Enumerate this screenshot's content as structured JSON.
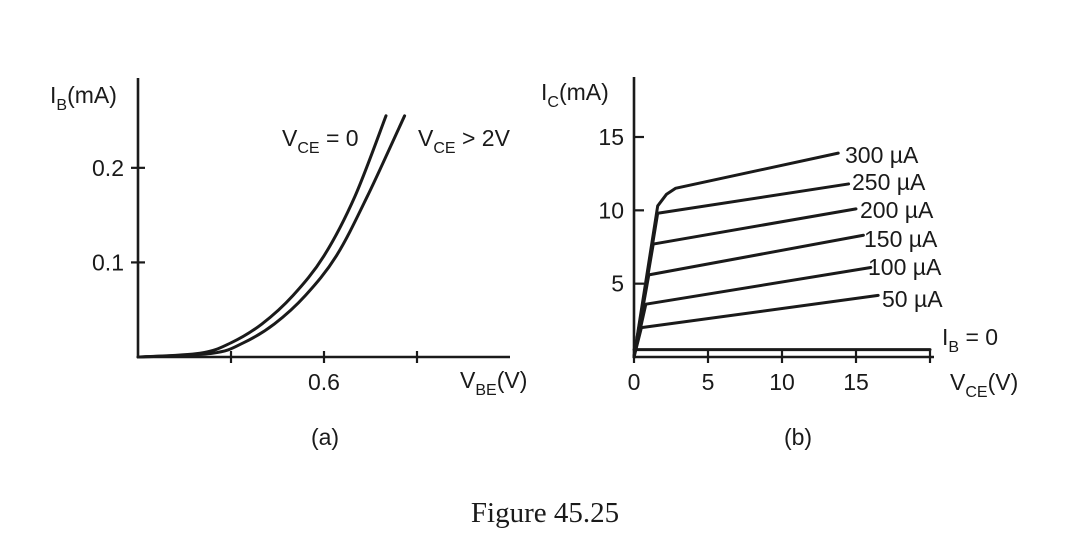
{
  "figure_caption": "Figure 45.25",
  "chart_data": [
    {
      "panel_label": "(a)",
      "type": "line",
      "ylabel": {
        "main": "I",
        "sub": "B",
        "rest": "(mA)"
      },
      "xlabel": {
        "main": "V",
        "sub": "BE",
        "rest": "(V)"
      },
      "xlim": [
        0.3,
        0.9
      ],
      "ylim": [
        0,
        0.24
      ],
      "x_ticks": [
        0.45,
        0.6,
        0.75
      ],
      "x_tick_labels": [
        {
          "value": 0.6,
          "text": "0.6"
        }
      ],
      "y_ticks": [
        {
          "value": 0.1,
          "text": "0.1"
        },
        {
          "value": 0.2,
          "text": "0.2"
        }
      ],
      "series": [
        {
          "label": {
            "main": "V",
            "sub": "CE",
            "rest": " = 0"
          },
          "x": [
            0.3,
            0.4,
            0.45,
            0.5,
            0.55,
            0.6,
            0.65,
            0.7
          ],
          "y": [
            0.0,
            0.004,
            0.015,
            0.035,
            0.065,
            0.107,
            0.17,
            0.255
          ]
        },
        {
          "label": {
            "main": "V",
            "sub": "CE",
            "rest": " > 2V"
          },
          "x": [
            0.3,
            0.42,
            0.47,
            0.52,
            0.57,
            0.62,
            0.67,
            0.73
          ],
          "y": [
            0.0,
            0.004,
            0.015,
            0.035,
            0.065,
            0.107,
            0.17,
            0.255
          ]
        }
      ]
    },
    {
      "panel_label": "(b)",
      "type": "line",
      "ylabel": {
        "main": "I",
        "sub": "C",
        "rest": "(mA)"
      },
      "xlabel": {
        "main": "V",
        "sub": "CE",
        "rest": "(V)"
      },
      "xlim": [
        0,
        20
      ],
      "ylim": [
        0,
        17
      ],
      "x_ticks": [
        {
          "value": 0,
          "text": "0"
        },
        {
          "value": 5,
          "text": "5"
        },
        {
          "value": 10,
          "text": "10"
        },
        {
          "value": 15,
          "text": "15"
        }
      ],
      "extra_x_ticks": [
        20
      ],
      "y_ticks": [
        {
          "value": 5,
          "text": "5"
        },
        {
          "value": 10,
          "text": "10"
        },
        {
          "value": 15,
          "text": "15"
        }
      ],
      "series": [
        {
          "label": "I_B = 0",
          "label_parts": {
            "main": "I",
            "sub": "B",
            "rest": " = 0"
          },
          "x": [
            0,
            20
          ],
          "y": [
            0.5,
            0.5
          ]
        },
        {
          "label": "50 µA",
          "x": [
            0,
            0.5,
            16.5
          ],
          "y": [
            0,
            2.0,
            4.2
          ]
        },
        {
          "label": "100 µA",
          "x": [
            0,
            0.8,
            16
          ],
          "y": [
            0,
            3.6,
            6.1
          ]
        },
        {
          "label": "150 µA",
          "x": [
            0,
            1.0,
            15.5
          ],
          "y": [
            0,
            5.6,
            8.3
          ]
        },
        {
          "label": "200 µA",
          "x": [
            0,
            1.3,
            15
          ],
          "y": [
            0,
            7.7,
            10.1
          ]
        },
        {
          "label": "250 µA",
          "x": [
            0,
            1.6,
            14.5
          ],
          "y": [
            0,
            9.8,
            11.8
          ]
        },
        {
          "label": "300 µA",
          "x": [
            0,
            1.6,
            2.2,
            2.8,
            13.8
          ],
          "y": [
            0,
            10.3,
            11.1,
            11.5,
            13.9
          ]
        }
      ]
    }
  ]
}
